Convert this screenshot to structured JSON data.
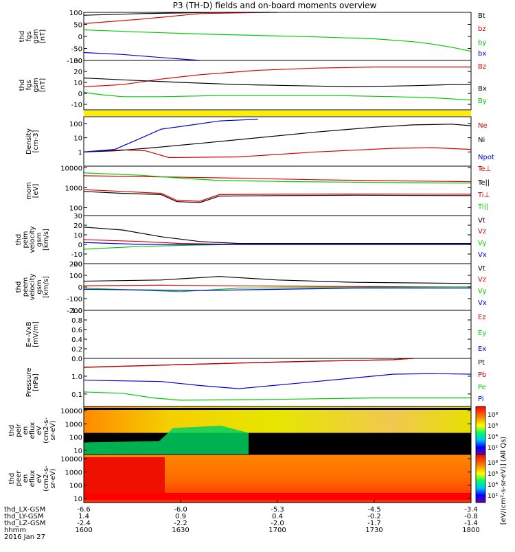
{
  "title": "P3 (TH-D) fields and on-board moments overview",
  "colors": {
    "black": "#000000",
    "red": "#dd0000",
    "green": "#00cc00",
    "blue": "#0000dd",
    "yellow": "#ffee00"
  },
  "chart_data": [
    {
      "id": "fgs_gsm",
      "type": "line",
      "ylabel_lines": [
        "thd",
        "fgs",
        "gsm",
        "[nT]"
      ],
      "ylim": [
        -100,
        100
      ],
      "yticks": [
        "100",
        "50",
        "0",
        "-50",
        "-100"
      ],
      "series": [
        {
          "name": "Bt",
          "color": "black",
          "points": [
            [
              0,
              88
            ],
            [
              15,
              95
            ],
            [
              35,
              102
            ],
            [
              50,
              110
            ]
          ]
        },
        {
          "name": "bz",
          "color": "red",
          "points": [
            [
              0,
              53
            ],
            [
              15,
              72
            ],
            [
              30,
              95
            ],
            [
              48,
              110
            ]
          ]
        },
        {
          "name": "by",
          "color": "green",
          "points": [
            [
              0,
              27
            ],
            [
              15,
              18
            ],
            [
              30,
              10
            ],
            [
              45,
              4
            ],
            [
              60,
              -2
            ],
            [
              75,
              -10
            ],
            [
              85,
              -22
            ],
            [
              90,
              -32
            ],
            [
              95,
              -45
            ],
            [
              100,
              -62
            ]
          ]
        },
        {
          "name": "bx",
          "color": "blue",
          "points": [
            [
              0,
              -67
            ],
            [
              10,
              -75
            ],
            [
              20,
              -88
            ],
            [
              30,
              -100
            ]
          ]
        }
      ]
    },
    {
      "id": "fgs_gsm_zoom",
      "type": "line",
      "ylabel_lines": [
        "thd",
        "fgs",
        "gsm",
        "[nT]"
      ],
      "ylim": [
        -15,
        30
      ],
      "yticks": [
        "30",
        "20",
        "10",
        "0",
        "-10"
      ],
      "series": [
        {
          "name": "Bz",
          "color": "red",
          "points": [
            [
              0,
              6
            ],
            [
              10,
              8
            ],
            [
              20,
              13
            ],
            [
              30,
              17
            ],
            [
              45,
              21
            ],
            [
              60,
              23
            ],
            [
              75,
              24
            ],
            [
              90,
              24
            ],
            [
              100,
              24
            ]
          ]
        },
        {
          "name": "Bx",
          "color": "black",
          "points": [
            [
              0,
              14
            ],
            [
              12,
              12
            ],
            [
              25,
              10
            ],
            [
              40,
              8
            ],
            [
              55,
              7
            ],
            [
              70,
              6
            ],
            [
              85,
              7
            ],
            [
              95,
              8
            ],
            [
              100,
              8
            ]
          ]
        },
        {
          "name": "By",
          "color": "green",
          "points": [
            [
              0,
              1
            ],
            [
              4,
              -1
            ],
            [
              10,
              -3
            ],
            [
              20,
              -3
            ],
            [
              35,
              -2
            ],
            [
              50,
              -2
            ],
            [
              65,
              -2
            ],
            [
              80,
              -3
            ],
            [
              90,
              -4
            ],
            [
              100,
              -6
            ]
          ]
        }
      ]
    },
    {
      "id": "density",
      "type": "line",
      "ylabel_lines": [
        "Density",
        "[cm-3]"
      ],
      "ylim": [
        0.1,
        300
      ],
      "scale": "log",
      "yticks": [
        "100",
        "10",
        "1"
      ],
      "series": [
        {
          "name": "Ne",
          "color": "red",
          "points": [
            [
              0,
              1
            ],
            [
              10,
              1.4
            ],
            [
              16,
              1.2
            ],
            [
              22,
              0.4
            ],
            [
              40,
              0.45
            ],
            [
              60,
              1
            ],
            [
              80,
              1.8
            ],
            [
              90,
              2
            ],
            [
              100,
              1.5
            ]
          ]
        },
        {
          "name": "Ni",
          "color": "black",
          "points": [
            [
              0,
              1
            ],
            [
              8,
              1.2
            ],
            [
              18,
              2
            ],
            [
              30,
              4
            ],
            [
              45,
              10
            ],
            [
              60,
              25
            ],
            [
              75,
              55
            ],
            [
              85,
              80
            ],
            [
              95,
              90
            ],
            [
              100,
              70
            ]
          ]
        },
        {
          "name": "Npot",
          "color": "blue",
          "points": [
            [
              0,
              1
            ],
            [
              8,
              1.5
            ],
            [
              15,
              10
            ],
            [
              20,
              40
            ],
            [
              28,
              80
            ],
            [
              35,
              150
            ],
            [
              45,
              200
            ]
          ]
        }
      ]
    },
    {
      "id": "temperature",
      "type": "line",
      "ylabel_lines": [
        "mom",
        "[eV]"
      ],
      "ylim": [
        40,
        12000
      ],
      "scale": "log",
      "yticks": [
        "10000",
        "1000",
        "100"
      ],
      "series": [
        {
          "name": "Te⊥",
          "color": "red",
          "points": [
            [
              0,
              4000
            ],
            [
              20,
              3500
            ],
            [
              40,
              3000
            ],
            [
              60,
              2500
            ],
            [
              80,
              2200
            ],
            [
              100,
              2000
            ]
          ]
        },
        {
          "name": "Te||",
          "color": "black",
          "points": [
            [
              0,
              650
            ],
            [
              10,
              520
            ],
            [
              20,
              450
            ],
            [
              24,
              200
            ],
            [
              30,
              180
            ],
            [
              35,
              380
            ],
            [
              50,
              400
            ],
            [
              70,
              420
            ],
            [
              100,
              400
            ]
          ]
        },
        {
          "name": "Ti⊥",
          "color": "red",
          "points": [
            [
              0,
              800
            ],
            [
              10,
              650
            ],
            [
              20,
              520
            ],
            [
              24,
              230
            ],
            [
              30,
              210
            ],
            [
              35,
              450
            ],
            [
              50,
              470
            ],
            [
              70,
              480
            ],
            [
              100,
              470
            ]
          ]
        },
        {
          "name": "Ti||",
          "color": "green",
          "points": [
            [
              0,
              5500
            ],
            [
              15,
              4200
            ],
            [
              25,
              3000
            ],
            [
              35,
              2300
            ],
            [
              55,
              2000
            ],
            [
              80,
              1800
            ],
            [
              100,
              1700
            ]
          ]
        }
      ]
    },
    {
      "id": "peim_velocity",
      "type": "line",
      "ylabel_lines": [
        "thd",
        "peim",
        "velocity",
        "gsm",
        "[km/s]"
      ],
      "ylim": [
        -20,
        30
      ],
      "yticks": [
        "30",
        "20",
        "10",
        "0",
        "-10",
        "-20"
      ],
      "series": [
        {
          "name": "Vt",
          "color": "black",
          "points": [
            [
              0,
              18
            ],
            [
              10,
              15
            ],
            [
              20,
              8
            ],
            [
              30,
              3
            ],
            [
              40,
              1
            ],
            [
              100,
              1
            ]
          ]
        },
        {
          "name": "Vz",
          "color": "red",
          "points": [
            [
              0,
              5
            ],
            [
              15,
              3
            ],
            [
              25,
              1
            ],
            [
              40,
              0
            ],
            [
              100,
              0
            ]
          ]
        },
        {
          "name": "Vy",
          "color": "green",
          "points": [
            [
              0,
              -5
            ],
            [
              15,
              -2
            ],
            [
              25,
              -1
            ],
            [
              40,
              0
            ],
            [
              100,
              0
            ]
          ]
        },
        {
          "name": "Vx",
          "color": "blue",
          "points": [
            [
              0,
              2
            ],
            [
              15,
              0
            ],
            [
              30,
              0
            ],
            [
              100,
              0
            ]
          ]
        }
      ]
    },
    {
      "id": "peem_velocity",
      "type": "line",
      "ylabel_lines": [
        "thd",
        "peem",
        "velocity",
        "gsm",
        "[km/s]"
      ],
      "ylim": [
        -200,
        200
      ],
      "yticks": [
        "200",
        "100",
        "0",
        "-100",
        "-200"
      ],
      "series": [
        {
          "name": "Vt",
          "color": "black",
          "points": [
            [
              0,
              50
            ],
            [
              20,
              60
            ],
            [
              35,
              90
            ],
            [
              50,
              60
            ],
            [
              70,
              40
            ],
            [
              100,
              30
            ]
          ]
        },
        {
          "name": "Vz",
          "color": "red",
          "points": [
            [
              0,
              10
            ],
            [
              20,
              15
            ],
            [
              40,
              10
            ],
            [
              60,
              5
            ],
            [
              100,
              0
            ]
          ]
        },
        {
          "name": "Vy",
          "color": "green",
          "points": [
            [
              0,
              -10
            ],
            [
              25,
              -40
            ],
            [
              40,
              -10
            ],
            [
              60,
              -5
            ],
            [
              100,
              0
            ]
          ]
        },
        {
          "name": "Vx",
          "color": "blue",
          "points": [
            [
              0,
              -20
            ],
            [
              30,
              -30
            ],
            [
              50,
              -20
            ],
            [
              70,
              -10
            ],
            [
              100,
              -10
            ]
          ]
        }
      ]
    },
    {
      "id": "efield",
      "type": "line",
      "ylabel_lines": [
        "E=-VxB",
        "[mV/m]"
      ],
      "ylim": [
        0,
        1
      ],
      "yticks": [
        "1.0",
        "0.8",
        "0.6",
        "0.4",
        "0.2",
        "0.0"
      ],
      "series": [
        {
          "name": "Ez",
          "color": "red",
          "points": []
        },
        {
          "name": "Ey",
          "color": "green",
          "points": []
        },
        {
          "name": "Ex",
          "color": "blue",
          "points": []
        }
      ]
    },
    {
      "id": "pressure",
      "type": "line",
      "ylabel_lines": [
        "Pressure",
        "[nPa]"
      ],
      "ylim": [
        0.02,
        10
      ],
      "scale": "log",
      "yticks": [
        "1.0",
        "0.1"
      ],
      "series": [
        {
          "name": "Pt",
          "color": "black",
          "points": [
            [
              0,
              3.2
            ],
            [
              20,
              4.2
            ],
            [
              40,
              5.5
            ],
            [
              60,
              7
            ],
            [
              80,
              8.5
            ],
            [
              85,
              10
            ]
          ]
        },
        {
          "name": "Pb",
          "color": "red",
          "points": [
            [
              0,
              3.1
            ],
            [
              20,
              4.1
            ],
            [
              40,
              5.4
            ],
            [
              60,
              6.9
            ],
            [
              80,
              8.4
            ],
            [
              85,
              10
            ]
          ]
        },
        {
          "name": "Pe",
          "color": "green",
          "points": [
            [
              0,
              0.13
            ],
            [
              10,
              0.11
            ],
            [
              18,
              0.06
            ],
            [
              25,
              0.045
            ],
            [
              50,
              0.05
            ],
            [
              75,
              0.06
            ],
            [
              100,
              0.06
            ]
          ]
        },
        {
          "name": "Pi",
          "color": "blue",
          "points": [
            [
              0,
              0.6
            ],
            [
              20,
              0.5
            ],
            [
              30,
              0.3
            ],
            [
              40,
              0.2
            ],
            [
              55,
              0.4
            ],
            [
              70,
              0.8
            ],
            [
              80,
              1.3
            ],
            [
              90,
              1.4
            ],
            [
              100,
              1.3
            ]
          ]
        }
      ]
    },
    {
      "id": "peir_spectrogram",
      "type": "heatmap",
      "ylabel_lines": [
        "thd",
        "peir",
        "en",
        "eflux",
        "eV",
        "(cm2-s-",
        "sr-eV)"
      ],
      "yticks": [
        "10000",
        "1000",
        "100",
        "10"
      ]
    },
    {
      "id": "peer_spectrogram",
      "type": "heatmap",
      "ylabel_lines": [
        "thd",
        "peer",
        "en",
        "eflux",
        "eV",
        "(cm2-s-",
        "sr-eV)"
      ],
      "yticks": [
        "10000",
        "1000",
        "100",
        "10"
      ]
    }
  ],
  "colorbar": {
    "label": "[eV/(cm²-s-sr-eV)] (All Qs)",
    "ticks": [
      "10⁸",
      "10⁶",
      "10⁴",
      "10²"
    ]
  },
  "x_axis": {
    "ticks": [
      {
        "hhmm": "1600",
        "lx": "-6.6",
        "ly": "1.4",
        "lz": "-2.4"
      },
      {
        "hhmm": "1630",
        "lx": "-6.0",
        "ly": "0.9",
        "lz": "-2.2"
      },
      {
        "hhmm": "1700",
        "lx": "-5.3",
        "ly": "0.4",
        "lz": "-2.0"
      },
      {
        "hhmm": "1730",
        "lx": "-4.5",
        "ly": "-0.2",
        "lz": "-1.7"
      },
      {
        "hhmm": "1800",
        "lx": "-3.4",
        "ly": "-0.8",
        "lz": "-1.4"
      }
    ],
    "row_labels": [
      "thd_LX-GSM",
      "thd_LY-GSM",
      "thd_LZ-GSM",
      "hhmm"
    ],
    "date": "2016 Jan 27"
  }
}
